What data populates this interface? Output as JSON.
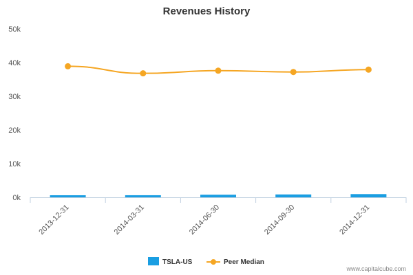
{
  "chart_data": {
    "type": "bar",
    "title": "Revenues History",
    "xlabel": "",
    "ylabel": "",
    "categories": [
      "2013-12-31",
      "2014-03-31",
      "2014-06-30",
      "2014-09-30",
      "2014-12-31"
    ],
    "y_ticks": [
      "0k",
      "10k",
      "20k",
      "30k",
      "40k",
      "50k"
    ],
    "ylim": [
      0,
      50000
    ],
    "grid": false,
    "legend_position": "bottom",
    "series": [
      {
        "name": "TSLA-US",
        "kind": "bar",
        "color": "#1a9ee2",
        "values": [
          615,
          621,
          769,
          852,
          957
        ]
      },
      {
        "name": "Peer Median",
        "kind": "line",
        "color": "#f5a623",
        "values": [
          38900,
          36800,
          37600,
          37200,
          37900
        ]
      }
    ]
  },
  "credit": "www.capitalcube.com"
}
